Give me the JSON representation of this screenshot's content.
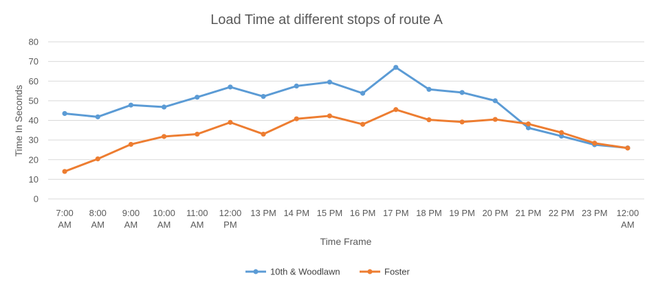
{
  "chart_data": {
    "type": "line",
    "title": "Load Time at different stops of route A",
    "xlabel": "Time Frame",
    "ylabel": "Time In Seconds",
    "ylim": [
      0,
      80
    ],
    "yticks": [
      0,
      10,
      20,
      30,
      40,
      50,
      60,
      70,
      80
    ],
    "grid": true,
    "legend_position": "bottom",
    "categories": [
      [
        "7:00",
        "AM"
      ],
      [
        "8:00",
        "AM"
      ],
      [
        "9:00",
        "AM"
      ],
      [
        "10:00",
        "AM"
      ],
      [
        "11:00",
        "AM"
      ],
      [
        "12:00",
        "PM"
      ],
      [
        "13 PM"
      ],
      [
        "14 PM"
      ],
      [
        "15 PM"
      ],
      [
        "16 PM"
      ],
      [
        "17 PM"
      ],
      [
        "18 PM"
      ],
      [
        "19 PM"
      ],
      [
        "20 PM"
      ],
      [
        "21 PM"
      ],
      [
        "22 PM"
      ],
      [
        "23 PM"
      ],
      [
        "12:00",
        "AM"
      ]
    ],
    "series": [
      {
        "name": "10th & Woodlawn",
        "color": "#5b9bd5",
        "values": [
          43.5,
          41.8,
          47.8,
          46.8,
          51.8,
          57.0,
          52.2,
          57.5,
          59.5,
          53.8,
          67.0,
          55.8,
          54.2,
          50.0,
          36.2,
          32.0,
          27.6,
          26.0
        ]
      },
      {
        "name": "Foster",
        "color": "#ed7d31",
        "values": [
          14.0,
          20.4,
          27.8,
          31.8,
          33.0,
          39.0,
          33.0,
          40.8,
          42.3,
          38.0,
          45.5,
          40.3,
          39.2,
          40.5,
          38.2,
          33.8,
          28.4,
          25.9
        ]
      }
    ]
  }
}
